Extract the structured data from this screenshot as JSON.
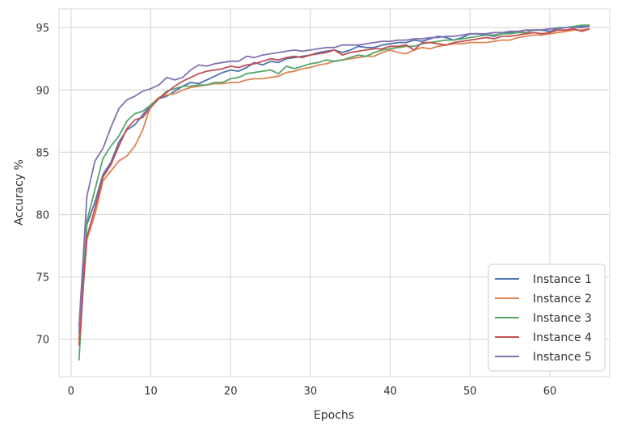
{
  "chart_data": {
    "type": "line",
    "xlabel": "Epochs",
    "ylabel": "Accuracy %",
    "xlim": [
      -1.5,
      67.5
    ],
    "ylim": [
      67,
      96.5
    ],
    "xticks": [
      0,
      10,
      20,
      30,
      40,
      50,
      60
    ],
    "yticks": [
      70,
      75,
      80,
      85,
      90,
      95
    ],
    "grid": true,
    "legend_position": "bottom-right",
    "x": [
      1,
      2,
      3,
      4,
      5,
      6,
      7,
      8,
      9,
      10,
      11,
      12,
      13,
      14,
      15,
      16,
      17,
      18,
      19,
      20,
      21,
      22,
      23,
      24,
      25,
      26,
      27,
      28,
      29,
      30,
      31,
      32,
      33,
      34,
      35,
      36,
      37,
      38,
      39,
      40,
      41,
      42,
      43,
      44,
      45,
      46,
      47,
      48,
      49,
      50,
      51,
      52,
      53,
      54,
      55,
      56,
      57,
      58,
      59,
      60,
      61,
      62,
      63,
      64,
      65
    ],
    "series": [
      {
        "name": "Instance 1",
        "color": "#4c72b0",
        "values": [
          70.5,
          79.2,
          81.0,
          83.2,
          84.2,
          85.8,
          86.8,
          87.2,
          88.0,
          88.8,
          89.3,
          89.5,
          89.9,
          90.3,
          90.6,
          90.5,
          90.8,
          91.1,
          91.4,
          91.6,
          91.5,
          91.8,
          92.2,
          92.0,
          92.3,
          92.2,
          92.5,
          92.6,
          92.7,
          92.8,
          93.0,
          93.1,
          93.2,
          93.0,
          93.2,
          93.5,
          93.4,
          93.4,
          93.6,
          93.7,
          93.8,
          93.8,
          94.0,
          93.9,
          94.1,
          94.3,
          94.2,
          94.0,
          94.2,
          94.5,
          94.5,
          94.4,
          94.3,
          94.5,
          94.6,
          94.7,
          94.6,
          94.8,
          94.8,
          94.7,
          94.9,
          95.0,
          95.0,
          95.1,
          95.2
        ]
      },
      {
        "name": "Instance 2",
        "color": "#dd8452",
        "values": [
          70.0,
          78.0,
          80.0,
          82.7,
          83.5,
          84.3,
          84.7,
          85.5,
          86.8,
          88.8,
          89.4,
          89.6,
          89.7,
          90.0,
          90.2,
          90.3,
          90.4,
          90.5,
          90.5,
          90.6,
          90.6,
          90.8,
          90.9,
          90.9,
          91.0,
          91.1,
          91.4,
          91.5,
          91.7,
          91.8,
          92.0,
          92.1,
          92.3,
          92.4,
          92.5,
          92.6,
          92.7,
          92.7,
          93.0,
          93.2,
          93.0,
          92.9,
          93.2,
          93.4,
          93.3,
          93.5,
          93.6,
          93.7,
          93.7,
          93.8,
          93.8,
          93.8,
          93.9,
          94.0,
          94.0,
          94.2,
          94.3,
          94.4,
          94.4,
          94.5,
          94.6,
          94.7,
          94.8,
          94.8,
          94.9
        ]
      },
      {
        "name": "Instance 3",
        "color": "#55a868",
        "values": [
          68.3,
          79.5,
          82.0,
          84.5,
          85.5,
          86.3,
          87.5,
          88.1,
          88.3,
          88.8,
          89.3,
          89.9,
          90.1,
          90.3,
          90.3,
          90.4,
          90.4,
          90.6,
          90.6,
          90.9,
          91.0,
          91.3,
          91.4,
          91.5,
          91.6,
          91.3,
          91.9,
          91.7,
          91.9,
          92.1,
          92.2,
          92.4,
          92.3,
          92.4,
          92.6,
          92.8,
          92.7,
          93.0,
          93.2,
          93.3,
          93.4,
          93.5,
          93.5,
          93.7,
          93.8,
          93.9,
          94.0,
          94.0,
          94.1,
          94.2,
          94.3,
          94.4,
          94.4,
          94.5,
          94.5,
          94.6,
          94.6,
          94.8,
          94.8,
          94.9,
          95.0,
          95.0,
          95.1,
          95.2,
          95.2
        ]
      },
      {
        "name": "Instance 4",
        "color": "#c44e52",
        "values": [
          69.5,
          78.2,
          80.5,
          83.0,
          84.0,
          85.5,
          86.9,
          87.6,
          87.8,
          88.6,
          89.3,
          89.8,
          90.3,
          90.7,
          91.0,
          91.3,
          91.5,
          91.6,
          91.7,
          91.9,
          91.8,
          92.0,
          92.1,
          92.3,
          92.5,
          92.4,
          92.6,
          92.7,
          92.6,
          92.8,
          92.9,
          93.0,
          93.2,
          92.8,
          93.0,
          93.1,
          93.2,
          93.3,
          93.3,
          93.5,
          93.5,
          93.6,
          93.2,
          93.8,
          93.8,
          93.7,
          93.6,
          93.8,
          93.9,
          94.0,
          94.1,
          94.2,
          94.1,
          94.3,
          94.3,
          94.4,
          94.5,
          94.6,
          94.5,
          94.6,
          94.8,
          94.8,
          94.9,
          94.7,
          94.9
        ]
      },
      {
        "name": "Instance 5",
        "color": "#8172b2",
        "values": [
          71.0,
          81.5,
          84.3,
          85.3,
          87.0,
          88.5,
          89.2,
          89.5,
          89.9,
          90.1,
          90.4,
          91.0,
          90.8,
          91.0,
          91.6,
          92.0,
          91.9,
          92.1,
          92.2,
          92.3,
          92.3,
          92.7,
          92.6,
          92.8,
          92.9,
          93.0,
          93.1,
          93.2,
          93.1,
          93.2,
          93.3,
          93.4,
          93.4,
          93.6,
          93.6,
          93.6,
          93.7,
          93.8,
          93.9,
          93.9,
          94.0,
          94.0,
          94.1,
          94.1,
          94.2,
          94.2,
          94.3,
          94.3,
          94.4,
          94.5,
          94.5,
          94.5,
          94.6,
          94.6,
          94.7,
          94.7,
          94.8,
          94.8,
          94.8,
          94.9,
          94.9,
          95.0,
          95.0,
          95.0,
          95.1
        ]
      }
    ]
  }
}
